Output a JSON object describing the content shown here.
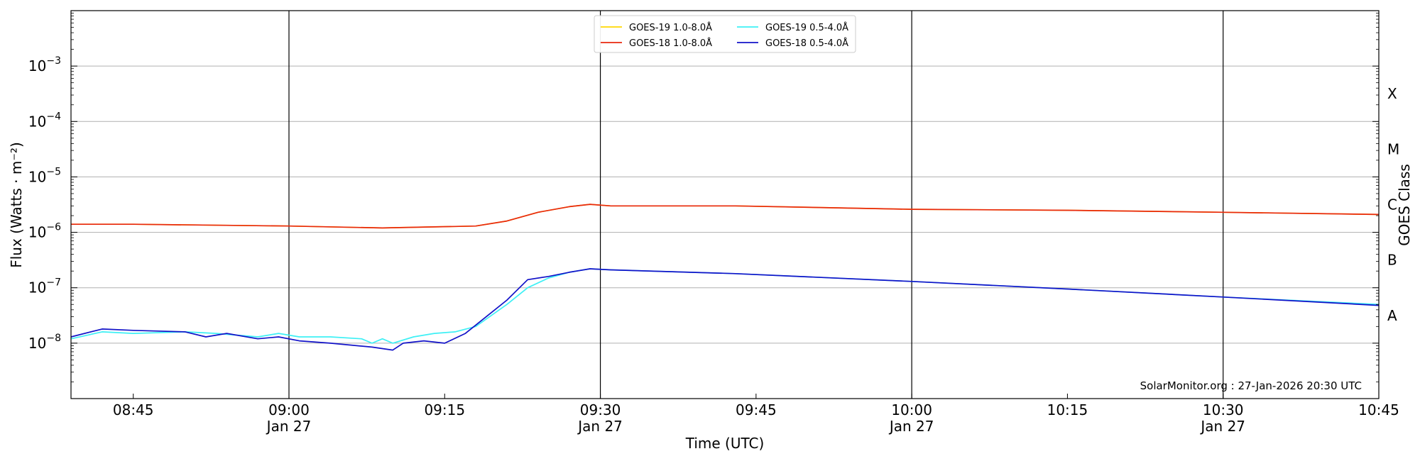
{
  "chart_data": {
    "type": "line",
    "ylabel": "Flux (Watts · m⁻²)",
    "xlabel": "Time (UTC)",
    "right_ylabel": "GOES Class",
    "credit": "SolarMonitor.org : 27-Jan-2026 20:30 UTC",
    "y_scale": "log",
    "ylim_exp": [
      -9,
      -2
    ],
    "x_range_minutes": [
      "08:39",
      "10:45"
    ],
    "x_ticks": [
      {
        "time": "08:45",
        "label": "08:45",
        "sub": ""
      },
      {
        "time": "09:00",
        "label": "09:00",
        "sub": "Jan 27"
      },
      {
        "time": "09:15",
        "label": "09:15",
        "sub": ""
      },
      {
        "time": "09:30",
        "label": "09:30",
        "sub": "Jan 27"
      },
      {
        "time": "09:45",
        "label": "09:45",
        "sub": ""
      },
      {
        "time": "10:00",
        "label": "10:00",
        "sub": "Jan 27"
      },
      {
        "time": "10:15",
        "label": "10:15",
        "sub": ""
      },
      {
        "time": "10:30",
        "label": "10:30",
        "sub": "Jan 27"
      },
      {
        "time": "10:45",
        "label": "10:45",
        "sub": ""
      }
    ],
    "y_ticks": [
      {
        "exp": -8,
        "label": "10",
        "sup": "−8"
      },
      {
        "exp": -7,
        "label": "10",
        "sup": "−7"
      },
      {
        "exp": -6,
        "label": "10",
        "sup": "−6"
      },
      {
        "exp": -5,
        "label": "10",
        "sup": "−5"
      },
      {
        "exp": -4,
        "label": "10",
        "sup": "−4"
      },
      {
        "exp": -3,
        "label": "10",
        "sup": "−3"
      }
    ],
    "goes_classes": [
      {
        "label": "A",
        "exp": -7.5
      },
      {
        "label": "B",
        "exp": -6.5
      },
      {
        "label": "C",
        "exp": -5.5
      },
      {
        "label": "M",
        "exp": -4.5
      },
      {
        "label": "X",
        "exp": -3.5
      }
    ],
    "vlines": [
      "09:00",
      "09:30",
      "10:00",
      "10:30"
    ],
    "legend_position": "top-center",
    "grid": "horizontal",
    "series": [
      {
        "name": "GOES-19 1.0-8.0Å",
        "color": "#ffd700",
        "x": [
          "08:39",
          "08:45",
          "09:00",
          "09:09",
          "09:18",
          "09:21",
          "09:24",
          "09:27",
          "09:29",
          "09:31",
          "09:43",
          "10:00",
          "10:15",
          "10:30",
          "10:45"
        ],
        "y": [
          1.4e-06,
          1.4e-06,
          1.3e-06,
          1.2e-06,
          1.3e-06,
          1.6e-06,
          2.3e-06,
          2.9e-06,
          3.2e-06,
          3e-06,
          3e-06,
          2.6e-06,
          2.5e-06,
          2.3e-06,
          2.1e-06
        ]
      },
      {
        "name": "GOES-18 1.0-8.0Å",
        "color": "#e8280f",
        "x": [
          "08:39",
          "08:45",
          "09:00",
          "09:09",
          "09:18",
          "09:21",
          "09:24",
          "09:27",
          "09:29",
          "09:31",
          "09:43",
          "10:00",
          "10:15",
          "10:30",
          "10:45"
        ],
        "y": [
          1.4e-06,
          1.4e-06,
          1.3e-06,
          1.2e-06,
          1.3e-06,
          1.6e-06,
          2.3e-06,
          2.9e-06,
          3.2e-06,
          3e-06,
          3e-06,
          2.6e-06,
          2.5e-06,
          2.3e-06,
          2.1e-06
        ]
      },
      {
        "name": "GOES-19 0.5-4.0Å",
        "color": "#3ef0f5",
        "x": [
          "08:39",
          "08:42",
          "08:45",
          "08:50",
          "08:53",
          "08:57",
          "08:59",
          "09:01",
          "09:04",
          "09:07",
          "09:08",
          "09:09",
          "09:10",
          "09:12",
          "09:14",
          "09:16",
          "09:18",
          "09:21",
          "09:23",
          "09:25",
          "09:27",
          "09:29",
          "09:31",
          "09:43",
          "10:00",
          "10:15",
          "10:30",
          "10:45"
        ],
        "y": [
          1.2e-08,
          1.6e-08,
          1.5e-08,
          1.6e-08,
          1.5e-08,
          1.3e-08,
          1.5e-08,
          1.3e-08,
          1.3e-08,
          1.2e-08,
          1e-08,
          1.2e-08,
          1e-08,
          1.3e-08,
          1.5e-08,
          1.6e-08,
          2e-08,
          5e-08,
          1e-07,
          1.5e-07,
          1.9e-07,
          2.2e-07,
          2.1e-07,
          1.8e-07,
          1.3e-07,
          9.5e-08,
          6.8e-08,
          5e-08
        ]
      },
      {
        "name": "GOES-18 0.5-4.0Å",
        "color": "#1212c8",
        "x": [
          "08:39",
          "08:42",
          "08:45",
          "08:50",
          "08:52",
          "08:54",
          "08:57",
          "08:59",
          "09:01",
          "09:04",
          "09:08",
          "09:10",
          "09:11",
          "09:13",
          "09:15",
          "09:17",
          "09:19",
          "09:21",
          "09:23",
          "09:25",
          "09:27",
          "09:29",
          "09:31",
          "09:43",
          "10:00",
          "10:15",
          "10:30",
          "10:45"
        ],
        "y": [
          1.3e-08,
          1.8e-08,
          1.7e-08,
          1.6e-08,
          1.3e-08,
          1.5e-08,
          1.2e-08,
          1.3e-08,
          1.1e-08,
          1e-08,
          8.5e-09,
          7.5e-09,
          1e-08,
          1.1e-08,
          1e-08,
          1.5e-08,
          3e-08,
          6e-08,
          1.4e-07,
          1.6e-07,
          1.9e-07,
          2.2e-07,
          2.1e-07,
          1.8e-07,
          1.3e-07,
          9.5e-08,
          6.8e-08,
          4.8e-08
        ]
      }
    ]
  }
}
